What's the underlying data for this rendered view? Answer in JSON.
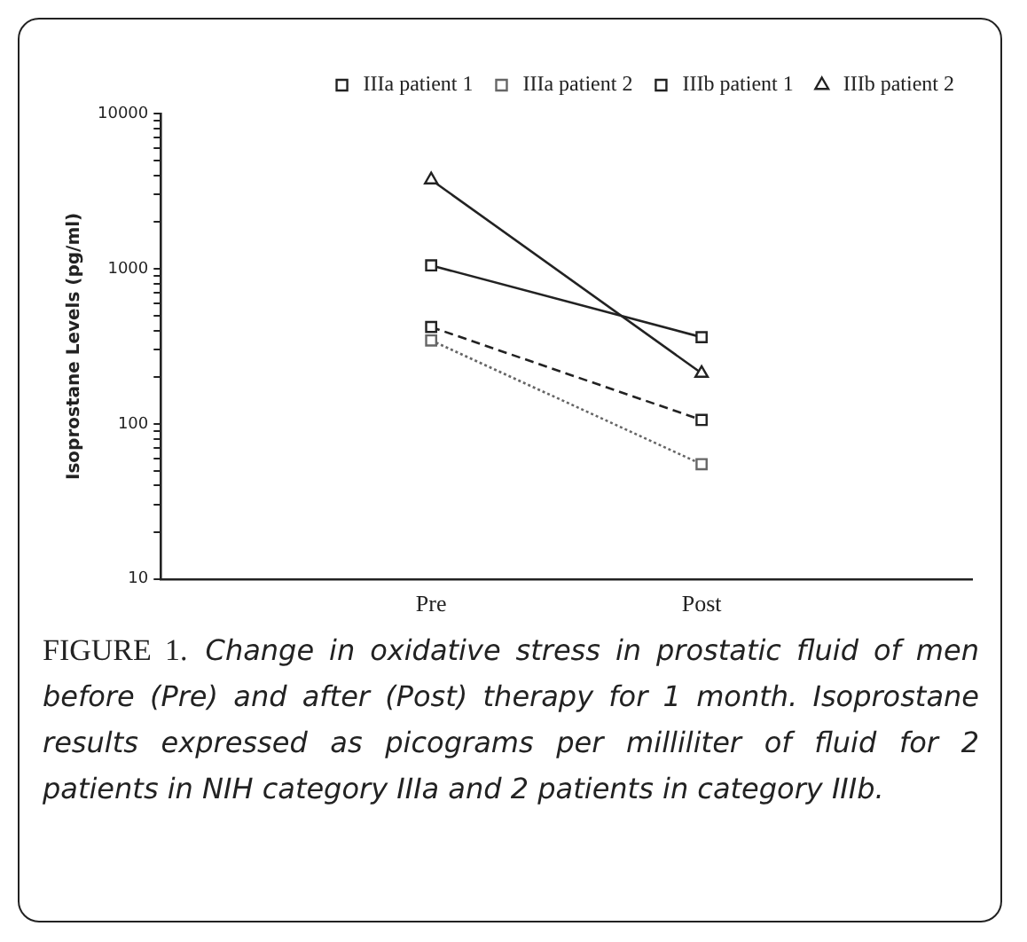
{
  "chart_data": {
    "type": "line",
    "ylabel": "Isoprostane Levels (pg/ml)",
    "categories": [
      null,
      "Pre",
      "Post",
      null
    ],
    "log": true,
    "ylim": [
      10,
      10000
    ],
    "yticks": [
      10,
      {
        "value": 20,
        "label": null
      },
      {
        "value": 30,
        "label": null
      },
      {
        "value": 40,
        "label": null
      },
      {
        "value": 50,
        "label": null
      },
      {
        "value": 60,
        "label": null
      },
      {
        "value": 70,
        "label": null
      },
      {
        "value": 80,
        "label": null
      },
      {
        "value": 90,
        "label": null
      },
      100,
      {
        "value": 200,
        "label": null
      },
      {
        "value": 300,
        "label": null
      },
      {
        "value": 400,
        "label": null
      },
      {
        "value": 500,
        "label": null
      },
      {
        "value": 600,
        "label": null
      },
      {
        "value": 700,
        "label": null
      },
      {
        "value": 800,
        "label": null
      },
      {
        "value": 900,
        "label": null
      },
      1000,
      {
        "value": 2000,
        "label": null
      },
      {
        "value": 3000,
        "label": null
      },
      {
        "value": 4000,
        "label": null
      },
      {
        "value": 5000,
        "label": null
      },
      {
        "value": 6000,
        "label": null
      },
      {
        "value": 7000,
        "label": null
      },
      {
        "value": 8000,
        "label": null
      },
      {
        "value": 9000,
        "label": null
      },
      10000
    ],
    "grid": false,
    "legend": "top right",
    "series": [
      {
        "name": "IIIa patient 1",
        "color": "#222222",
        "values": [
          null,
          1050,
          362,
          null
        ],
        "marker": "square",
        "line_style": "solid"
      },
      {
        "name": "IIIa patient 2",
        "color": "#666666",
        "values": [
          null,
          345,
          55,
          null
        ],
        "marker": "square",
        "line_style": "dotted"
      },
      {
        "name": "IIIb patient 1",
        "color": "#222222",
        "values": [
          null,
          421,
          106,
          null
        ],
        "marker": "square",
        "line_style": "dashed"
      },
      {
        "name": "IIIb patient 2",
        "color": "#222222",
        "values": [
          null,
          3740,
          212,
          null
        ],
        "marker": "triangle",
        "line_style": "solid"
      }
    ],
    "annotations": [
      "FIGURE 1.",
      "Change in oxidative stress in prostatic fluid of men before (Pre) and after (Post) therapy for 1 month. Isoprostane results expressed as picograms per milliliter of fluid for 2 patients in NIH category IIIa and 2 patients in category IIIb."
    ]
  }
}
